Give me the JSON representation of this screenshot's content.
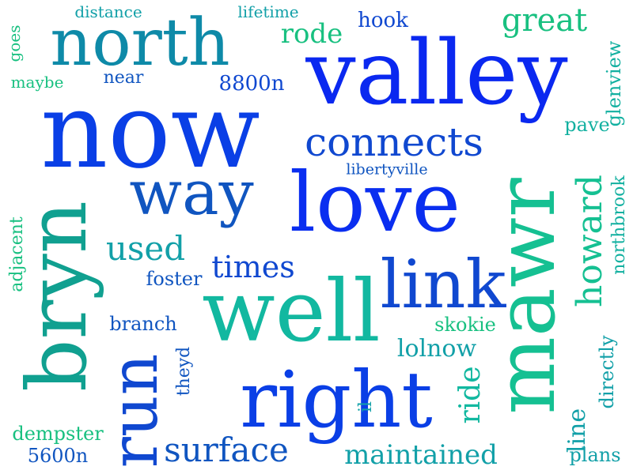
{
  "cloud": {
    "words": [
      {
        "text": "valley",
        "color": "#0a28f0"
      },
      {
        "text": "now",
        "color": "#0a3fe6"
      },
      {
        "text": "love",
        "color": "#0a2ef0"
      },
      {
        "text": "north",
        "color": "#0e8aa8"
      },
      {
        "text": "bryn",
        "color": "#10a090"
      },
      {
        "text": "mawr",
        "color": "#15c092"
      },
      {
        "text": "well",
        "color": "#12b8a0"
      },
      {
        "text": "right",
        "color": "#0a3fe6"
      },
      {
        "text": "way",
        "color": "#1055c0"
      },
      {
        "text": "link",
        "color": "#1048d0"
      },
      {
        "text": "run",
        "color": "#1048d0"
      },
      {
        "text": "connects",
        "color": "#1048d0"
      },
      {
        "text": "howard",
        "color": "#15c092"
      },
      {
        "text": "surface",
        "color": "#1055c0"
      },
      {
        "text": "maintained",
        "color": "#12a0a8"
      },
      {
        "text": "used",
        "color": "#12a0a8"
      },
      {
        "text": "times",
        "color": "#1048d0"
      },
      {
        "text": "great",
        "color": "#18c080"
      },
      {
        "text": "rode",
        "color": "#18c080"
      },
      {
        "text": "ride",
        "color": "#12b8a0"
      },
      {
        "text": "lolnow",
        "color": "#12a0a8"
      },
      {
        "text": "line",
        "color": "#12a0a8"
      },
      {
        "text": "hook",
        "color": "#1048d0"
      },
      {
        "text": "8800n",
        "color": "#1048d0"
      },
      {
        "text": "glenview",
        "color": "#12b0a0"
      },
      {
        "text": "pave",
        "color": "#12b0a0"
      },
      {
        "text": "northbrook",
        "color": "#12b0a0"
      },
      {
        "text": "directly",
        "color": "#12a0a8"
      },
      {
        "text": "plans",
        "color": "#12a0a8"
      },
      {
        "text": "dempster",
        "color": "#18c080"
      },
      {
        "text": "5600n",
        "color": "#1055c0"
      },
      {
        "text": "branch",
        "color": "#1055c0"
      },
      {
        "text": "foster",
        "color": "#1055c0"
      },
      {
        "text": "skokie",
        "color": "#18c080"
      },
      {
        "text": "theyd",
        "color": "#1055c0"
      },
      {
        "text": "il",
        "color": "#12a0a8"
      },
      {
        "text": "adjacent",
        "color": "#18c080"
      },
      {
        "text": "goes",
        "color": "#18c080"
      },
      {
        "text": "maybe",
        "color": "#18c080"
      },
      {
        "text": "near",
        "color": "#1055c0"
      },
      {
        "text": "distance",
        "color": "#12a0a8"
      },
      {
        "text": "lifetime",
        "color": "#12a0a8"
      },
      {
        "text": "libertyville",
        "color": "#1055c0"
      }
    ]
  }
}
